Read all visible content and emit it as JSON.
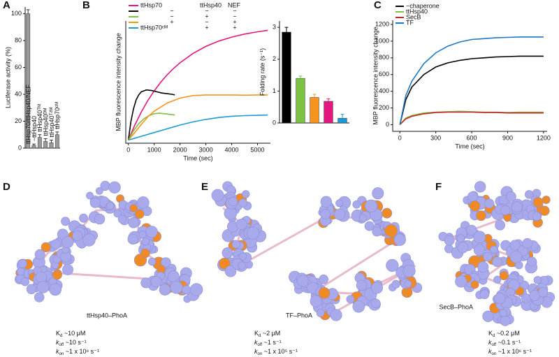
{
  "chart_data": [
    {
      "type": "bar",
      "letter": "A",
      "ylabel": "Luciferase activity (%)",
      "categories": [
        "ttHsp70/ttHsp40/NEF",
        "−ttHsp40",
        "ttHsp40ᵀᴹ",
        "ttHsp40ᴰᴹ",
        "ttHsp40ᵀ²ᴹ",
        "ttHsp70ᶜᴹ"
      ],
      "values": [
        100,
        2,
        8,
        5,
        4,
        10
      ],
      "errors": [
        3,
        1,
        2,
        2,
        2,
        2
      ],
      "color": "#9a9a9a",
      "ylim": [
        0,
        105
      ],
      "yticks": [
        0,
        20,
        40,
        60,
        80,
        100
      ]
    },
    {
      "type": "line",
      "letter": "B",
      "xlabel": "Time (sec)",
      "ylabel": "MBP fluorescence intensity change",
      "legend_header": [
        "ttHsp70",
        "ttHsp40",
        "NEF"
      ],
      "xlim": [
        -100,
        5500
      ],
      "ylim": [
        -50,
        1900
      ],
      "xticks": [
        0,
        1000,
        2000,
        3000,
        4000,
        5000
      ],
      "series": [
        {
          "name": null,
          "color": "#e5177e",
          "conditions": null,
          "x": [
            0,
            250,
            500,
            750,
            1000,
            1250,
            1500,
            1750,
            2000,
            2500,
            3000,
            3500,
            4000,
            4500,
            5000,
            5400
          ],
          "values": [
            0,
            239,
            447,
            628,
            785,
            921,
            1040,
            1143,
            1232,
            1381,
            1494,
            1579,
            1643,
            1691,
            1727,
            1751
          ]
        },
        {
          "name": null,
          "color": "#000000",
          "conditions": [
            "−",
            "−",
            "−"
          ],
          "x": [
            0,
            100,
            200,
            300,
            400,
            500,
            700,
            900,
            1100,
            1300,
            1500,
            1700,
            1800
          ],
          "values": [
            0,
            300,
            500,
            640,
            720,
            770,
            800,
            790,
            770,
            750,
            740,
            730,
            720
          ]
        },
        {
          "name": null,
          "color": "#7dc242",
          "conditions": [
            "−",
            "+",
            "−"
          ],
          "x": [
            0,
            200,
            400,
            600,
            800,
            1000,
            1200,
            1400,
            1600,
            1800
          ],
          "values": [
            0,
            150,
            260,
            340,
            390,
            420,
            430,
            420,
            410,
            400
          ]
        },
        {
          "name": null,
          "color": "#f7941d",
          "conditions": [
            "+",
            "−",
            "+"
          ],
          "x": [
            0,
            250,
            500,
            750,
            1000,
            1500,
            2000,
            2500,
            3000,
            3500,
            4000,
            4500,
            5000,
            5400
          ],
          "values": [
            0,
            120,
            250,
            370,
            460,
            590,
            670,
            710,
            720,
            720,
            720,
            715,
            720,
            720
          ]
        },
        {
          "name": "ttHsp70ᶜᴹ",
          "color": "#1c9ad6",
          "conditions": [
            "+",
            "+"
          ],
          "x": [
            0,
            250,
            500,
            1000,
            1500,
            2000,
            2500,
            3000,
            3500,
            4000,
            4500,
            5000,
            5400
          ],
          "values": [
            0,
            30,
            60,
            120,
            180,
            240,
            290,
            330,
            360,
            380,
            390,
            395,
            400
          ]
        }
      ]
    },
    {
      "type": "bar",
      "letter": null,
      "ylabel": "Folding rate (s⁻¹)",
      "categories": [
        null,
        null,
        null,
        null,
        null
      ],
      "values": [
        2.85,
        1.4,
        0.8,
        0.68,
        0.15
      ],
      "errors": [
        0.15,
        0.07,
        0.1,
        0.08,
        0.12
      ],
      "colors": [
        "#000000",
        "#7dc242",
        "#f7941d",
        "#e5177e",
        "#1c9ad6"
      ],
      "ylim": [
        0,
        3.2
      ],
      "yticks": [
        0,
        1,
        2,
        3
      ]
    },
    {
      "type": "line",
      "letter": "C",
      "xlabel": "Time (sec)",
      "ylabel": "MBP fluorescence intensity change",
      "xlim": [
        -60,
        1230
      ],
      "ylim": [
        -80,
        1250
      ],
      "xticks": [
        0,
        300,
        600,
        900,
        1200
      ],
      "yticks": [
        0,
        200,
        400,
        600,
        800,
        1000,
        1200
      ],
      "x": [
        0,
        50,
        100,
        200,
        300,
        400,
        500,
        600,
        700,
        800,
        900,
        1000,
        1100,
        1200
      ],
      "series": [
        {
          "name": "−chaperone",
          "color": "#000000",
          "values": [
            0,
            300,
            450,
            600,
            690,
            740,
            770,
            790,
            800,
            810,
            815,
            820,
            820,
            820
          ]
        },
        {
          "name": "ttHsp40",
          "color": "#7dc242",
          "values": [
            0,
            80,
            110,
            140,
            150,
            155,
            160,
            155,
            150,
            150,
            145,
            150,
            150,
            150
          ]
        },
        {
          "name": "SecB",
          "color": "#c1272d",
          "values": [
            0,
            70,
            100,
            130,
            145,
            150,
            150,
            150,
            145,
            145,
            140,
            140,
            140,
            140
          ]
        },
        {
          "name": "TF",
          "color": "#1f78c1",
          "values": [
            0,
            350,
            520,
            730,
            860,
            940,
            990,
            1020,
            1030,
            1040,
            1045,
            1050,
            1050,
            1050
          ]
        }
      ]
    }
  ],
  "panels": [
    {
      "letter": "D",
      "protein": "ttHsp40",
      "partner": "–PhoA",
      "kd": [
        "K",
        "d",
        " ~10 μM"
      ],
      "koff": [
        "k",
        "off",
        " ~10 s⁻¹"
      ],
      "kon": [
        "k",
        "on",
        " ~1 x 10⁶ s⁻¹"
      ]
    },
    {
      "letter": "E",
      "protein": "TF",
      "partner": "–PhoA",
      "kd": [
        "K",
        "d",
        " ~2 μM"
      ],
      "koff": [
        "k",
        "off",
        " ~1 s⁻¹"
      ],
      "kon": [
        "k",
        "on",
        " ~1 x 10⁵ s⁻¹"
      ]
    },
    {
      "letter": "F",
      "protein": "SecB",
      "partner": "–PhoA",
      "kd": [
        "K",
        "d",
        " ~0.2 μM"
      ],
      "koff": [
        "k",
        "off",
        " ~0.1 s⁻¹"
      ],
      "kon": [
        "k",
        "on",
        " ~1 x 10⁶ s⁻¹"
      ]
    }
  ]
}
